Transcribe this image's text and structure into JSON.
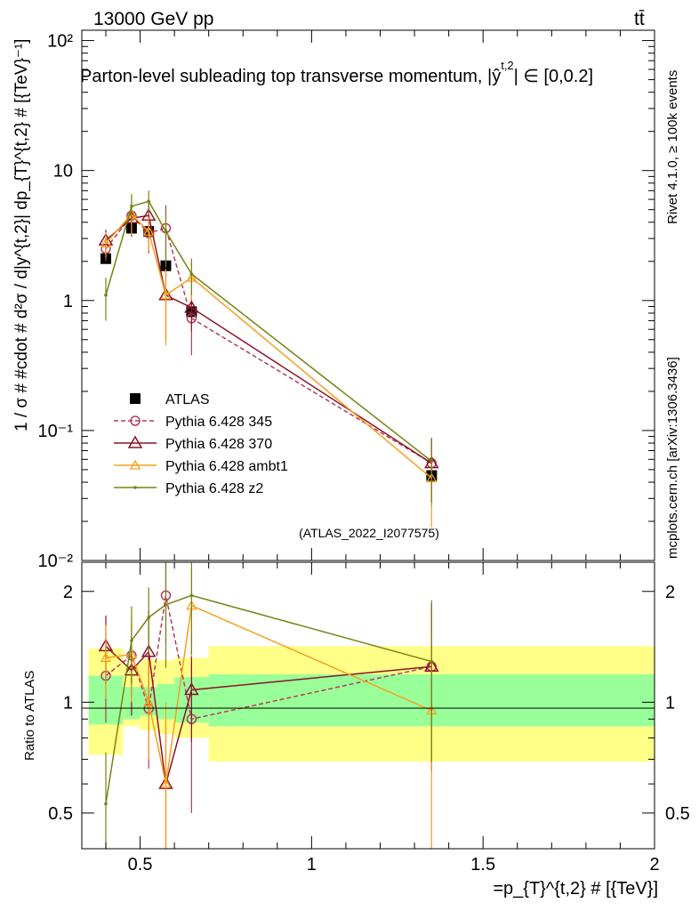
{
  "header": {
    "energy_label": "13000 GeV pp",
    "process_label": "tt̄",
    "plot_title": "Parton-level subleading top transverse momentum, |ŷ",
    "plot_title_sup": "t,2",
    "plot_title_tail": "| ∈ [0,0.2]",
    "analysis_tag": "(ATLAS_2022_I2077575)"
  },
  "side_labels": {
    "rivet": "Rivet 4.1.0, ≥ 100k events",
    "mcplots": "mcplots.cern.ch [arXiv:1306.3436]"
  },
  "axes": {
    "ylabel_main": "1 / σ # #cdot # d²σ / d|y^{t,2}| dp_{T}^{t,2} # [{TeV}⁻¹]",
    "ylabel_ratio": "Ratio to ATLAS",
    "xlabel": "=p_{T}^{t,2} # [{TeV}]",
    "x_ticks": [
      "0.5",
      "1",
      "1.5",
      "2"
    ],
    "y_ticks_main": [
      "10⁻²",
      "10⁻¹",
      "1",
      "10",
      "10²"
    ],
    "y_ticks_ratio": [
      "0.5",
      "1",
      "2"
    ]
  },
  "legend": [
    {
      "label": "ATLAS",
      "color": "#000000",
      "marker": "square",
      "dash": false
    },
    {
      "label": "Pythia 6.428 345",
      "color": "#b43c5a",
      "marker": "circle",
      "dash": true
    },
    {
      "label": "Pythia 6.428 370",
      "color": "#8c1428",
      "marker": "triangle",
      "dash": false
    },
    {
      "label": "Pythia 6.428 ambt1",
      "color": "#f5a01e",
      "marker": "triangle-small",
      "dash": false
    },
    {
      "label": "Pythia 6.428 z2",
      "color": "#788214",
      "marker": "dot",
      "dash": false
    }
  ],
  "chart_data": [
    {
      "type": "scatter",
      "panel": "main",
      "yscale": "log",
      "xlim": [
        0.33,
        2.0
      ],
      "ylim": [
        0.01,
        120
      ],
      "xlabel": "=p_{T}^{t,2} # [{TeV}]",
      "ylabel": "1 / σ d²σ / d|y| dp_T [TeV⁻¹]",
      "x": [
        0.4,
        0.475,
        0.525,
        0.575,
        0.65,
        1.35
      ],
      "series": [
        {
          "name": "ATLAS",
          "color": "#000000",
          "values": [
            2.1,
            3.6,
            3.4,
            1.85,
            0.82,
            0.045
          ]
        },
        {
          "name": "Pythia 6.428 345",
          "color": "#b43c5a",
          "values": [
            2.5,
            4.5,
            3.3,
            3.6,
            0.73,
            0.056
          ],
          "err": [
            0.5,
            1.2,
            1.0,
            1.8,
            0.35,
            0.03
          ]
        },
        {
          "name": "Pythia 6.428 370",
          "color": "#8c1428",
          "values": [
            2.9,
            4.3,
            4.5,
            1.1,
            0.88,
            0.056
          ],
          "err": [
            0.6,
            1.2,
            1.5,
            0.6,
            0.3,
            0.03
          ]
        },
        {
          "name": "Pythia 6.428 ambt1",
          "color": "#f5a01e",
          "values": [
            2.75,
            4.6,
            3.4,
            1.1,
            1.5,
            0.043
          ],
          "err": [
            0.6,
            1.4,
            1.0,
            0.65,
            0.5,
            0.025
          ]
        },
        {
          "name": "Pythia 6.428 z2",
          "color": "#788214",
          "values": [
            1.1,
            5.3,
            5.8,
            3.4,
            1.6,
            0.058
          ],
          "err": [
            0.4,
            1.3,
            1.2,
            1.5,
            0.5,
            0.03
          ]
        }
      ]
    },
    {
      "type": "line",
      "panel": "ratio",
      "yscale": "log",
      "xlim": [
        0.33,
        2.0
      ],
      "ylim": [
        0.4,
        2.4
      ],
      "ylabel": "Ratio to ATLAS",
      "x": [
        0.4,
        0.475,
        0.525,
        0.575,
        0.65,
        1.35
      ],
      "bands": {
        "edges": [
          0.35,
          0.45,
          0.5,
          0.55,
          0.6,
          0.7,
          2.0
        ],
        "inner_lo": [
          0.87,
          0.9,
          0.92,
          0.9,
          0.88,
          0.86
        ],
        "inner_hi": [
          1.18,
          1.1,
          1.1,
          1.12,
          1.17,
          1.19
        ],
        "outer_lo": [
          0.72,
          0.86,
          0.84,
          0.82,
          0.8,
          0.69
        ],
        "outer_hi": [
          1.4,
          1.27,
          1.31,
          1.3,
          1.32,
          1.42
        ]
      },
      "series": [
        {
          "name": "Pythia 6.428 345",
          "color": "#b43c5a",
          "values": [
            1.18,
            1.34,
            0.96,
            1.95,
            0.9,
            1.25
          ],
          "err": [
            0.3,
            0.3,
            0.3,
            0.5,
            0.4,
            0.6
          ]
        },
        {
          "name": "Pythia 6.428 370",
          "color": "#8c1428",
          "values": [
            1.42,
            1.22,
            1.37,
            0.6,
            1.08,
            1.25
          ],
          "err": [
            0.3,
            0.3,
            0.4,
            0.3,
            0.3,
            0.6
          ]
        },
        {
          "name": "Pythia 6.428 ambt1",
          "color": "#f5a01e",
          "values": [
            1.32,
            1.35,
            1.0,
            0.6,
            1.83,
            0.95
          ],
          "err": [
            0.3,
            0.35,
            0.3,
            0.4,
            0.5,
            0.6
          ]
        },
        {
          "name": "Pythia 6.428 z2",
          "color": "#788214",
          "values": [
            0.53,
            1.47,
            1.7,
            1.84,
            1.95,
            1.29
          ],
          "err": [
            0.2,
            0.35,
            0.35,
            0.6,
            0.6,
            0.6
          ]
        }
      ]
    }
  ]
}
